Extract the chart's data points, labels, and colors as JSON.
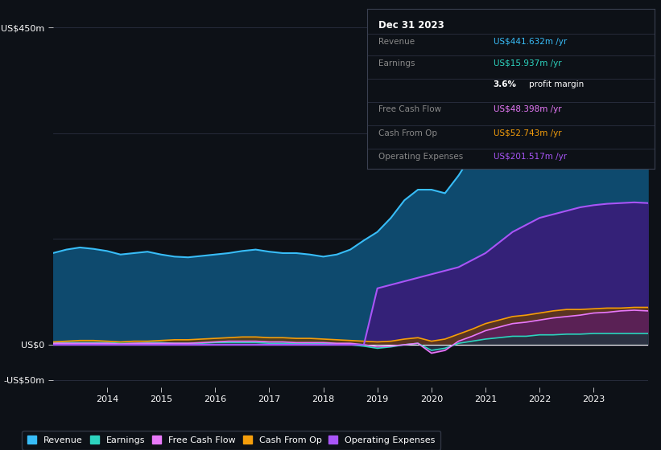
{
  "background_color": "#0d1117",
  "plot_bg_color": "#0d1117",
  "grid_color": "#2a3040",
  "years": [
    2013.0,
    2013.25,
    2013.5,
    2013.75,
    2014.0,
    2014.25,
    2014.5,
    2014.75,
    2015.0,
    2015.25,
    2015.5,
    2015.75,
    2016.0,
    2016.25,
    2016.5,
    2016.75,
    2017.0,
    2017.25,
    2017.5,
    2017.75,
    2018.0,
    2018.25,
    2018.5,
    2018.75,
    2019.0,
    2019.25,
    2019.5,
    2019.75,
    2020.0,
    2020.25,
    2020.5,
    2020.75,
    2021.0,
    2021.25,
    2021.5,
    2021.75,
    2022.0,
    2022.25,
    2022.5,
    2022.75,
    2023.0,
    2023.25,
    2023.5,
    2023.75,
    2024.0
  ],
  "revenue": [
    130,
    135,
    138,
    136,
    133,
    128,
    130,
    132,
    128,
    125,
    124,
    126,
    128,
    130,
    133,
    135,
    132,
    130,
    130,
    128,
    125,
    128,
    135,
    148,
    160,
    180,
    205,
    220,
    220,
    215,
    240,
    270,
    300,
    320,
    340,
    360,
    380,
    390,
    400,
    415,
    430,
    435,
    442,
    448,
    445
  ],
  "earnings": [
    3,
    3,
    3,
    3,
    3,
    2,
    2,
    3,
    3,
    2,
    2,
    2,
    3,
    3,
    3,
    3,
    2,
    2,
    2,
    2,
    2,
    1,
    0,
    -2,
    -5,
    -3,
    0,
    2,
    -8,
    -5,
    2,
    5,
    8,
    10,
    12,
    12,
    14,
    14,
    15,
    15,
    16,
    16,
    16,
    16,
    16
  ],
  "free_cash_flow": [
    2,
    2,
    2,
    2,
    2,
    1,
    2,
    2,
    2,
    2,
    2,
    3,
    4,
    5,
    5,
    5,
    4,
    4,
    3,
    3,
    3,
    2,
    2,
    0,
    -3,
    -2,
    0,
    2,
    -12,
    -8,
    5,
    12,
    20,
    25,
    30,
    32,
    35,
    38,
    40,
    42,
    45,
    46,
    48,
    49,
    48
  ],
  "cash_from_op": [
    4,
    5,
    6,
    6,
    5,
    4,
    5,
    5,
    6,
    7,
    7,
    8,
    9,
    10,
    11,
    11,
    10,
    10,
    9,
    9,
    8,
    7,
    6,
    5,
    4,
    5,
    8,
    10,
    5,
    8,
    15,
    22,
    30,
    35,
    40,
    42,
    45,
    48,
    50,
    50,
    51,
    52,
    52,
    53,
    53
  ],
  "operating_expenses": [
    0,
    0,
    0,
    0,
    0,
    0,
    0,
    0,
    0,
    0,
    0,
    0,
    0,
    0,
    0,
    0,
    0,
    0,
    0,
    0,
    0,
    0,
    0,
    0,
    80,
    85,
    90,
    95,
    100,
    105,
    110,
    120,
    130,
    145,
    160,
    170,
    180,
    185,
    190,
    195,
    198,
    200,
    201,
    202,
    201
  ],
  "revenue_color": "#38bdf8",
  "revenue_fill": "#0e4a6e",
  "earnings_color": "#2dd4bf",
  "earnings_fill": "#0d3d36",
  "fcf_color": "#e879f9",
  "fcf_fill": "#5b1a6b",
  "cashop_color": "#f59e0b",
  "cashop_fill": "#6b3d00",
  "opex_color": "#a855f7",
  "opex_fill": "#3b1a7a",
  "ylim": [
    -60,
    470
  ],
  "xtick_years": [
    2014,
    2015,
    2016,
    2017,
    2018,
    2019,
    2020,
    2021,
    2022,
    2023
  ],
  "legend_items": [
    {
      "label": "Revenue",
      "color": "#38bdf8"
    },
    {
      "label": "Earnings",
      "color": "#2dd4bf"
    },
    {
      "label": "Free Cash Flow",
      "color": "#e879f9"
    },
    {
      "label": "Cash From Op",
      "color": "#f59e0b"
    },
    {
      "label": "Operating Expenses",
      "color": "#a855f7"
    }
  ],
  "box_date": "Dec 31 2023",
  "box_rows": [
    {
      "label": "Revenue",
      "value": "US$441.632m /yr",
      "value_color": "#38bdf8",
      "profit_margin": null
    },
    {
      "label": "Earnings",
      "value": "US$15.937m /yr",
      "value_color": "#2dd4bf",
      "profit_margin": null
    },
    {
      "label": "",
      "value": "",
      "value_color": "#ffffff",
      "profit_margin": "3.6% profit margin"
    },
    {
      "label": "Free Cash Flow",
      "value": "US$48.398m /yr",
      "value_color": "#e879f9",
      "profit_margin": null
    },
    {
      "label": "Cash From Op",
      "value": "US$52.743m /yr",
      "value_color": "#f59e0b",
      "profit_margin": null
    },
    {
      "label": "Operating Expenses",
      "value": "US$201.517m /yr",
      "value_color": "#a855f7",
      "profit_margin": null
    }
  ]
}
